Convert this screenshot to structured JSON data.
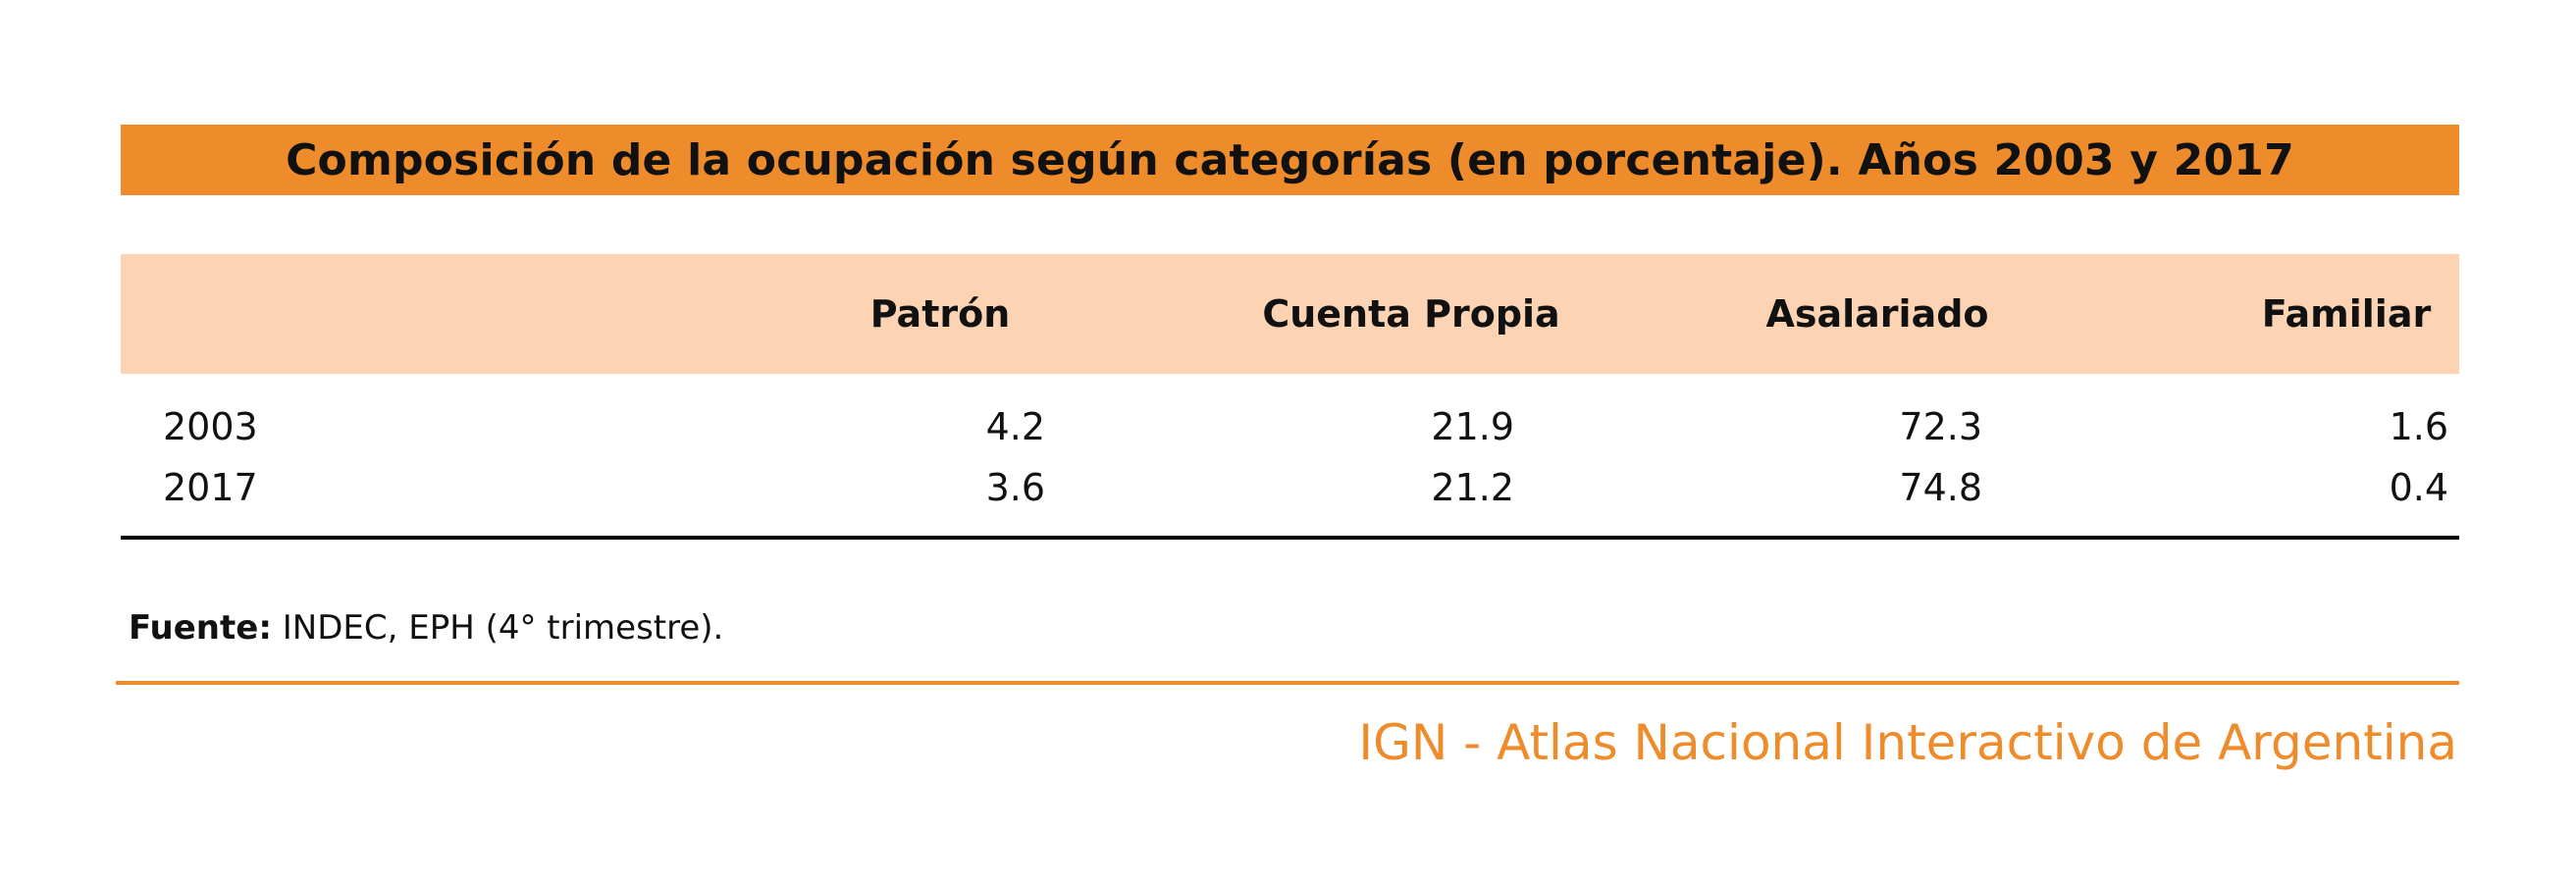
{
  "chart_data": {
    "type": "table",
    "title": "Composición de la ocupación según categorías (en porcentaje). Años 2003 y 2017",
    "columns": [
      "Patrón",
      "Cuenta Propia",
      "Asalariado",
      "Familiar"
    ],
    "rows": [
      {
        "label": "2003",
        "values": [
          "4.2",
          "21.9",
          "72.3",
          "1.6"
        ]
      },
      {
        "label": "2017",
        "values": [
          "3.6",
          "21.2",
          "74.8",
          "0.4"
        ]
      }
    ]
  },
  "source": {
    "label": "Fuente:",
    "text": " INDEC, EPH (4° trimestre)."
  },
  "footer": {
    "brand": "IGN - Atlas Nacional Interactivo de Argentina"
  },
  "colors": {
    "accent": "#ee8c2c",
    "header_band": "#fcd4b4",
    "rule": "#000000"
  }
}
